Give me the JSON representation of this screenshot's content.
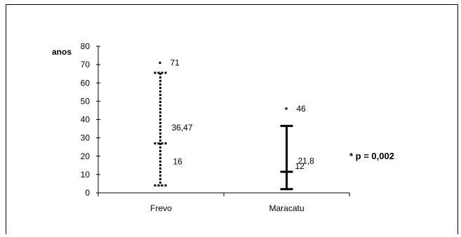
{
  "chart_data": {
    "type": "errorbar",
    "ylabel": "anos",
    "ylim": [
      0,
      80
    ],
    "yticks": [
      0,
      10,
      20,
      30,
      40,
      50,
      60,
      70,
      80
    ],
    "categories": [
      "Frevo",
      "Maracatu"
    ],
    "series": [
      {
        "category": "Frevo",
        "style": "dashed",
        "mean": 36.47,
        "mean_label": "36,47",
        "sd": 16,
        "sd_label": "16",
        "low": 4,
        "high": 65.5,
        "mid_marker": 27,
        "max": 71,
        "max_label": "71"
      },
      {
        "category": "Maracatu",
        "style": "solid",
        "mean": 21.8,
        "mean_label": "21,8",
        "sd": 12,
        "sd_label": "12",
        "low": 2,
        "high": 36.5,
        "mid_marker": 11.5,
        "max": 46,
        "max_label": "46"
      }
    ],
    "annotation": "* p = 0,002",
    "colors": {
      "axis": "#000000",
      "bars": "#000000"
    }
  }
}
